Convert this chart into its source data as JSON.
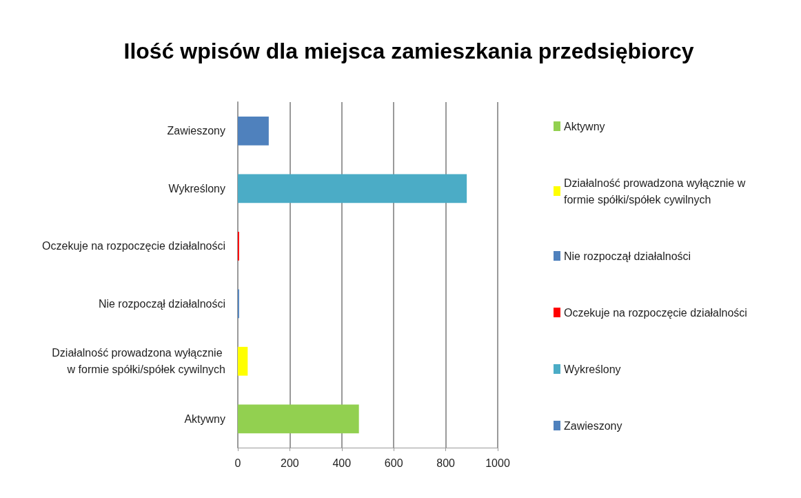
{
  "chart_data": {
    "type": "bar",
    "orientation": "horizontal",
    "title": "Ilość wpisów dla miejsca zamieszkania przedsiębiorcy",
    "categories": [
      "Zawieszony",
      "Wykreślony",
      "Oczekuje na rozpoczęcie działalności",
      "Nie rozpoczął działalności",
      "Działalność prowadzona wyłącznie w formie spółki/spółek cywilnych",
      "Aktywny"
    ],
    "series": [
      {
        "name": "Zawieszony",
        "color": "#4f81bd",
        "values": [
          119,
          null,
          null,
          null,
          null,
          null
        ]
      },
      {
        "name": "Wykreślony",
        "color": "#4bacc6",
        "values": [
          null,
          881,
          null,
          null,
          null,
          null
        ]
      },
      {
        "name": "Oczekuje na rozpoczęcie działalności",
        "color": "#ff0000",
        "values": [
          null,
          null,
          5,
          null,
          null,
          null
        ]
      },
      {
        "name": "Nie rozpoczął działalności",
        "color": "#4f81bd",
        "values": [
          null,
          null,
          null,
          5,
          null,
          null
        ]
      },
      {
        "name": "Działalność prowadzona wyłącznie w formie spółki/spółek cywilnych",
        "color": "#ffff00",
        "values": [
          null,
          null,
          null,
          null,
          38,
          null
        ]
      },
      {
        "name": "Aktywny",
        "color": "#92d050",
        "values": [
          null,
          null,
          null,
          null,
          null,
          466
        ]
      }
    ],
    "xlim": [
      0,
      1000
    ],
    "xticks": [
      0,
      200,
      400,
      600,
      800,
      1000
    ],
    "grid": "x",
    "legend": "right"
  }
}
